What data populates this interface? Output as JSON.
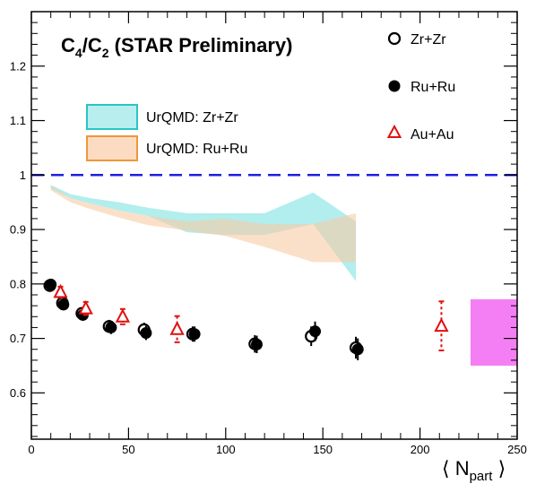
{
  "chart_data": {
    "type": "scatter",
    "title": "C4/C2 (STAR Preliminary)",
    "title_parts": {
      "c": "C",
      "sub4": "4",
      "slash": "/",
      "c2": "C",
      "sub2": "2",
      "rest": " (STAR Preliminary)"
    },
    "xlabel_parts": {
      "open": "⟨ N",
      "sub": "part",
      "close": " ⟩"
    },
    "xlim": [
      0,
      250
    ],
    "ylim": [
      0.515,
      1.3
    ],
    "x_ticks": [
      0,
      50,
      100,
      150,
      200,
      250
    ],
    "x_tick_labels": [
      "0",
      "50",
      "100",
      "150",
      "200",
      "250"
    ],
    "y_ticks": [
      0.6,
      0.7,
      0.8,
      0.9,
      1.0,
      1.1,
      1.2
    ],
    "y_tick_labels": [
      "0.6",
      "0.7",
      "0.8",
      "0.9",
      "1",
      "1.1",
      "1.2"
    ],
    "reference_line": {
      "y": 1.0,
      "color": "#1f1fe0",
      "style": "dashed"
    },
    "series": [
      {
        "name": "Zr+Zr",
        "marker": "open-circle",
        "color": "#000000",
        "points": [
          {
            "x": 9.5,
            "y": 0.797,
            "err": 0.009
          },
          {
            "x": 16,
            "y": 0.765,
            "err": 0.01
          },
          {
            "x": 26,
            "y": 0.746,
            "err": 0.01
          },
          {
            "x": 40,
            "y": 0.722,
            "err": 0.012
          },
          {
            "x": 58,
            "y": 0.716,
            "err": 0.013
          },
          {
            "x": 83,
            "y": 0.708,
            "err": 0.014
          },
          {
            "x": 115,
            "y": 0.69,
            "err": 0.016
          },
          {
            "x": 144,
            "y": 0.704,
            "err": 0.018
          },
          {
            "x": 167,
            "y": 0.683,
            "err": 0.02
          }
        ]
      },
      {
        "name": "Ru+Ru",
        "marker": "filled-circle",
        "color": "#000000",
        "points": [
          {
            "x": 10,
            "y": 0.799,
            "err": 0.009
          },
          {
            "x": 16.5,
            "y": 0.762,
            "err": 0.01
          },
          {
            "x": 26.5,
            "y": 0.743,
            "err": 0.01
          },
          {
            "x": 41,
            "y": 0.72,
            "err": 0.012
          },
          {
            "x": 59,
            "y": 0.71,
            "err": 0.013
          },
          {
            "x": 84,
            "y": 0.708,
            "err": 0.014
          },
          {
            "x": 116,
            "y": 0.689,
            "err": 0.016
          },
          {
            "x": 146,
            "y": 0.713,
            "err": 0.018
          },
          {
            "x": 168,
            "y": 0.68,
            "err": 0.02
          }
        ]
      },
      {
        "name": "Au+Au",
        "marker": "open-triangle",
        "color": "#e01010",
        "points": [
          {
            "x": 15,
            "y": 0.785,
            "err": 0.01
          },
          {
            "x": 28,
            "y": 0.755,
            "err": 0.012
          },
          {
            "x": 47,
            "y": 0.74,
            "err": 0.014
          },
          {
            "x": 75,
            "y": 0.717,
            "err": 0.024
          },
          {
            "x": 211,
            "y": 0.723,
            "err": 0.045
          }
        ]
      }
    ],
    "bands": [
      {
        "name": "UrQMD: Zr+Zr",
        "fill": "#7fe3e3",
        "stroke": "#2bc4c4",
        "x": [
          10,
          20,
          30,
          45,
          60,
          80,
          100,
          120,
          145,
          167
        ],
        "upper": [
          0.982,
          0.965,
          0.958,
          0.95,
          0.94,
          0.93,
          0.93,
          0.93,
          0.968,
          0.915
        ],
        "lower": [
          0.975,
          0.958,
          0.948,
          0.935,
          0.925,
          0.895,
          0.89,
          0.89,
          0.91,
          0.805
        ]
      },
      {
        "name": "UrQMD: Ru+Ru",
        "fill": "#f8cca5",
        "stroke": "#f0963c",
        "x": [
          10,
          20,
          30,
          45,
          60,
          80,
          100,
          120,
          145,
          167
        ],
        "upper": [
          0.98,
          0.958,
          0.948,
          0.935,
          0.925,
          0.915,
          0.92,
          0.91,
          0.91,
          0.93
        ],
        "lower": [
          0.972,
          0.95,
          0.938,
          0.922,
          0.908,
          0.898,
          0.888,
          0.868,
          0.84,
          0.84
        ]
      }
    ],
    "box": {
      "x": [
        226,
        250
      ],
      "y": [
        0.65,
        0.772
      ],
      "color": "#f47ff4"
    },
    "legend": {
      "placement": "top-right",
      "entries": [
        {
          "marker": "open-circle",
          "label": "Zr+Zr"
        },
        {
          "marker": "filled-circle",
          "label": "Ru+Ru"
        },
        {
          "marker": "open-triangle",
          "label": "Au+Au"
        }
      ]
    },
    "band_legend": {
      "placement": "top-left",
      "entries": [
        {
          "label": "UrQMD: Zr+Zr"
        },
        {
          "label": "UrQMD: Ru+Ru"
        }
      ]
    }
  }
}
